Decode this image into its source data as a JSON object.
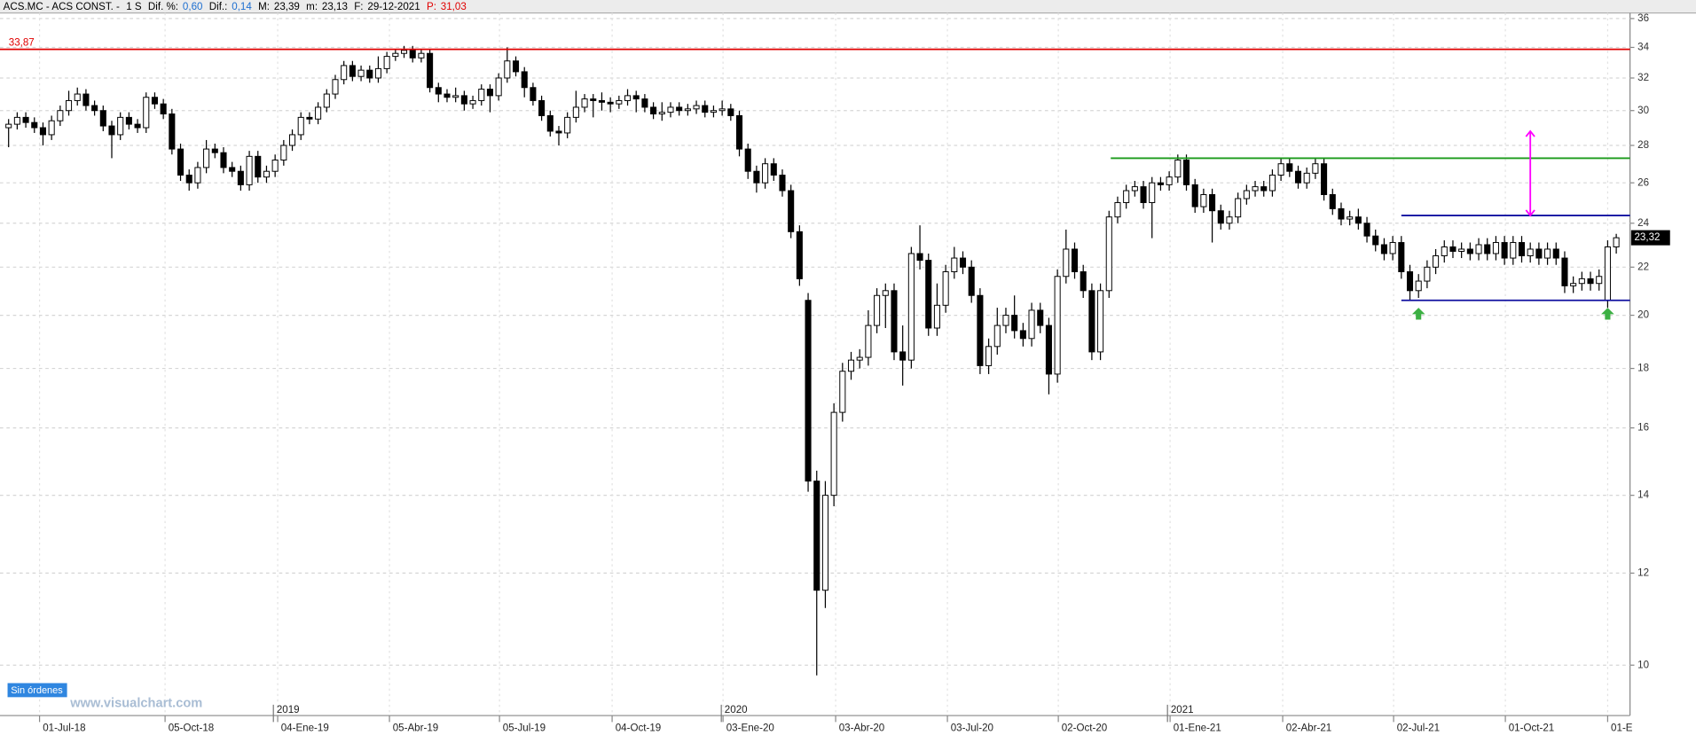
{
  "header": {
    "title": "ACS.MC - ACS CONST. -",
    "period": "1 S",
    "fields": [
      {
        "label": "Dif. %:",
        "value": "0,60",
        "color": "#1e6fd0"
      },
      {
        "label": "Dif.:",
        "value": "0,14",
        "color": "#1e6fd0"
      },
      {
        "label": "M:",
        "value": "23,39"
      },
      {
        "label": "m:",
        "value": "23,13"
      },
      {
        "label": "F:",
        "value": "29-12-2021"
      },
      {
        "label": "P:",
        "value": "31,03",
        "color": "#e00000",
        "label_color": "#e00000"
      }
    ]
  },
  "badge": "Sin órdenes",
  "watermark": "www.visualchart.com",
  "chart_data": {
    "type": "candlestick",
    "log_scale": true,
    "grid": true,
    "up_color": "#ffffff",
    "down_color": "#000000",
    "xlim": [
      -1,
      188.6
    ],
    "ylim": [
      9.05,
      36.4
    ],
    "yticks": [
      10,
      12,
      14,
      16,
      18,
      20,
      22,
      24,
      26,
      28,
      30,
      32,
      34,
      36
    ],
    "xticks": [
      {
        "value": 3.6,
        "label": "01-Jul-18"
      },
      {
        "value": 18.2,
        "label": "05-Oct-18"
      },
      {
        "value": 31.3,
        "label": "04-Ene-19"
      },
      {
        "value": 44.3,
        "label": "05-Abr-19"
      },
      {
        "value": 57.1,
        "label": "05-Jul-19"
      },
      {
        "value": 70.2,
        "label": "04-Oct-19"
      },
      {
        "value": 83.1,
        "label": "03-Ene-20"
      },
      {
        "value": 96.2,
        "label": "03-Abr-20"
      },
      {
        "value": 109.2,
        "label": "03-Jul-20"
      },
      {
        "value": 122.1,
        "label": "02-Oct-20"
      },
      {
        "value": 135.1,
        "label": "01-Ene-21"
      },
      {
        "value": 148.2,
        "label": "02-Abr-21"
      },
      {
        "value": 161.1,
        "label": "02-Jul-21"
      },
      {
        "value": 174.1,
        "label": "01-Oct-21"
      },
      {
        "value": 186.0,
        "label": "01-E"
      }
    ],
    "year_ticks": [
      {
        "value": 30.8,
        "label": "2019"
      },
      {
        "value": 82.9,
        "label": "2020"
      },
      {
        "value": 134.8,
        "label": "2021"
      }
    ],
    "open": [
      29.0,
      29.2,
      29.6,
      29.3,
      29.0,
      28.6,
      29.4,
      30.0,
      30.6,
      31.0,
      30.3,
      30.0,
      29.1,
      28.6,
      29.6,
      29.2,
      29.0,
      30.8,
      30.4,
      29.8,
      27.8,
      26.4,
      26.0,
      26.8,
      27.8,
      27.6,
      26.8,
      26.6,
      25.9,
      27.4,
      26.3,
      26.6,
      27.2,
      28.0,
      28.6,
      29.6,
      29.5,
      30.2,
      31.0,
      31.9,
      32.8,
      32.1,
      32.5,
      32.0,
      32.6,
      33.4,
      33.6,
      33.8,
      33.3,
      33.6,
      31.4,
      31.0,
      30.8,
      30.9,
      30.4,
      30.6,
      31.3,
      30.9,
      32.0,
      33.1,
      32.4,
      31.4,
      30.6,
      29.7,
      28.8,
      28.7,
      29.6,
      30.2,
      30.7,
      30.6,
      30.5,
      30.4,
      30.6,
      30.9,
      30.7,
      30.2,
      29.8,
      29.9,
      30.2,
      30.0,
      30.1,
      30.3,
      29.9,
      30.0,
      30.1,
      29.7,
      27.8,
      26.6,
      26.0,
      27.0,
      26.4,
      25.6,
      23.6,
      20.6,
      14.4,
      11.6,
      14.0,
      16.5,
      17.9,
      18.3,
      18.4,
      19.6,
      20.8,
      21.0,
      18.6,
      18.3,
      22.6,
      22.3,
      19.5,
      20.4,
      21.8,
      22.4,
      22.0,
      20.8,
      18.1,
      18.8,
      19.6,
      20.0,
      19.4,
      19.1,
      20.2,
      19.6,
      17.8,
      21.6,
      22.8,
      21.8,
      21.0,
      18.6,
      21.0,
      24.3,
      25.0,
      25.6,
      25.8,
      25.0,
      26.0,
      25.9,
      26.3,
      27.2,
      25.9,
      24.8,
      25.4,
      24.6,
      24.0,
      24.3,
      25.2,
      25.6,
      25.8,
      25.6,
      26.4,
      27.0,
      26.6,
      26.0,
      26.5,
      27.0,
      25.4,
      24.7,
      24.2,
      24.3,
      24.0,
      23.4,
      23.0,
      22.6,
      23.1,
      21.8,
      21.0,
      21.4,
      22.0,
      22.5,
      22.9,
      22.7,
      22.8,
      22.6,
      23.0,
      22.6,
      23.1,
      22.4,
      23.1,
      22.5,
      22.8,
      22.4,
      22.8,
      22.4,
      21.2,
      21.3,
      21.5,
      21.3,
      20.6,
      22.9
    ],
    "high": [
      29.5,
      29.9,
      29.9,
      29.6,
      29.3,
      29.7,
      30.3,
      31.2,
      31.4,
      31.3,
      30.6,
      30.3,
      29.4,
      29.9,
      29.9,
      29.5,
      31.1,
      31.1,
      30.7,
      30.1,
      28.1,
      26.7,
      27.1,
      28.3,
      28.1,
      27.9,
      27.1,
      26.9,
      27.7,
      27.7,
      26.9,
      27.5,
      28.3,
      28.9,
      29.9,
      29.9,
      30.5,
      31.3,
      32.2,
      33.1,
      33.1,
      32.8,
      32.8,
      33.4,
      33.7,
      33.9,
      34.1,
      34.1,
      33.9,
      33.9,
      31.7,
      31.3,
      31.4,
      31.2,
      30.9,
      31.6,
      31.6,
      32.3,
      34.0,
      33.4,
      32.7,
      31.7,
      30.9,
      30.0,
      29.1,
      29.9,
      31.2,
      31.0,
      31.0,
      31.1,
      30.8,
      30.9,
      31.3,
      31.2,
      31.0,
      30.5,
      30.5,
      30.5,
      30.5,
      30.4,
      30.6,
      30.6,
      30.3,
      30.6,
      30.4,
      30.0,
      28.1,
      26.9,
      27.3,
      27.3,
      26.7,
      25.9,
      23.9,
      20.9,
      14.7,
      14.4,
      16.8,
      18.2,
      18.6,
      18.7,
      20.2,
      21.1,
      21.3,
      21.3,
      19.6,
      22.9,
      23.9,
      22.6,
      21.3,
      22.1,
      22.9,
      22.7,
      22.3,
      21.1,
      19.1,
      20.3,
      20.3,
      20.8,
      19.7,
      20.5,
      20.5,
      19.9,
      21.9,
      23.7,
      23.1,
      22.1,
      21.3,
      21.3,
      24.6,
      25.3,
      25.9,
      26.1,
      26.1,
      26.3,
      26.3,
      26.6,
      27.5,
      27.5,
      26.2,
      25.7,
      25.7,
      24.9,
      24.6,
      25.5,
      25.9,
      26.1,
      26.1,
      26.7,
      27.3,
      27.3,
      26.9,
      26.8,
      27.3,
      27.3,
      25.7,
      25.0,
      24.6,
      24.7,
      24.3,
      23.7,
      23.3,
      23.4,
      23.4,
      22.1,
      21.7,
      22.3,
      22.8,
      23.2,
      23.2,
      23.1,
      23.1,
      23.3,
      23.3,
      23.4,
      23.4,
      23.4,
      23.4,
      23.1,
      23.1,
      23.1,
      23.1,
      22.7,
      21.6,
      21.8,
      21.8,
      21.9,
      23.2,
      23.5
    ],
    "low": [
      27.9,
      28.9,
      29.0,
      28.7,
      28.0,
      28.3,
      29.1,
      29.7,
      30.3,
      30.0,
      29.7,
      28.8,
      27.3,
      28.3,
      28.9,
      28.7,
      28.7,
      30.1,
      29.5,
      27.5,
      26.1,
      25.6,
      25.7,
      26.5,
      27.3,
      26.5,
      26.3,
      25.6,
      25.6,
      26.0,
      26.0,
      26.3,
      26.9,
      27.7,
      28.3,
      29.2,
      29.2,
      29.9,
      30.7,
      31.6,
      31.8,
      31.8,
      31.7,
      31.7,
      32.3,
      33.1,
      33.3,
      33.0,
      33.0,
      31.1,
      30.5,
      30.5,
      30.5,
      30.0,
      30.1,
      30.3,
      29.9,
      30.6,
      31.7,
      32.1,
      30.8,
      30.3,
      29.4,
      28.5,
      28.0,
      28.4,
      29.3,
      29.9,
      29.6,
      30.0,
      29.9,
      30.1,
      30.3,
      29.9,
      29.9,
      29.5,
      29.4,
      29.6,
      29.7,
      29.7,
      29.8,
      29.6,
      29.6,
      29.7,
      29.4,
      27.4,
      26.2,
      25.5,
      25.7,
      26.1,
      25.3,
      23.3,
      21.2,
      14.1,
      9.8,
      11.2,
      13.7,
      16.2,
      17.6,
      18.0,
      18.1,
      19.3,
      19.5,
      18.3,
      17.4,
      18.0,
      21.9,
      19.2,
      19.2,
      20.1,
      21.5,
      21.7,
      20.5,
      17.8,
      17.8,
      18.5,
      19.3,
      19.1,
      18.8,
      18.8,
      19.3,
      17.1,
      17.5,
      21.3,
      21.5,
      20.7,
      18.3,
      18.3,
      20.7,
      24.0,
      24.7,
      25.3,
      24.7,
      23.3,
      25.6,
      25.6,
      26.0,
      25.6,
      24.5,
      24.5,
      23.1,
      23.7,
      23.7,
      24.0,
      24.9,
      25.3,
      25.3,
      25.3,
      26.1,
      26.3,
      25.7,
      25.7,
      26.2,
      25.1,
      24.4,
      23.9,
      23.9,
      23.7,
      23.1,
      22.7,
      22.3,
      22.3,
      21.5,
      20.6,
      20.7,
      21.1,
      21.7,
      22.2,
      22.4,
      22.4,
      22.3,
      22.3,
      22.3,
      22.3,
      22.1,
      22.1,
      22.2,
      22.2,
      22.1,
      22.1,
      22.1,
      20.9,
      20.9,
      21.0,
      21.0,
      21.0,
      20.3,
      22.6
    ],
    "close": [
      29.2,
      29.6,
      29.3,
      29.0,
      28.6,
      29.4,
      30.0,
      30.6,
      31.0,
      30.3,
      30.0,
      29.1,
      28.6,
      29.6,
      29.2,
      29.0,
      30.8,
      30.4,
      29.8,
      27.8,
      26.4,
      26.0,
      26.8,
      27.8,
      27.6,
      26.8,
      26.6,
      25.9,
      27.4,
      26.3,
      26.6,
      27.2,
      28.0,
      28.6,
      29.6,
      29.5,
      30.2,
      31.0,
      31.9,
      32.8,
      32.1,
      32.5,
      32.0,
      32.6,
      33.4,
      33.6,
      33.8,
      33.3,
      33.6,
      31.4,
      31.0,
      30.8,
      30.9,
      30.4,
      30.6,
      31.3,
      30.9,
      32.0,
      33.1,
      32.4,
      31.4,
      30.6,
      29.7,
      28.8,
      28.7,
      29.6,
      30.2,
      30.7,
      30.6,
      30.5,
      30.4,
      30.6,
      30.9,
      30.7,
      30.2,
      29.8,
      29.9,
      30.2,
      30.0,
      30.1,
      30.3,
      29.9,
      30.0,
      30.1,
      29.7,
      27.8,
      26.6,
      26.0,
      27.0,
      26.4,
      25.6,
      23.6,
      21.5,
      14.4,
      11.6,
      14.0,
      16.5,
      17.9,
      18.3,
      18.4,
      19.6,
      20.8,
      21.0,
      18.6,
      18.3,
      22.6,
      22.3,
      19.5,
      20.4,
      21.8,
      22.4,
      22.0,
      20.8,
      18.1,
      18.8,
      19.6,
      20.0,
      19.4,
      19.1,
      20.2,
      19.6,
      17.8,
      21.6,
      22.8,
      21.8,
      21.0,
      18.6,
      21.0,
      24.3,
      25.0,
      25.6,
      25.8,
      25.0,
      26.0,
      25.9,
      26.3,
      27.2,
      25.9,
      24.8,
      25.4,
      24.6,
      24.0,
      24.3,
      25.2,
      25.6,
      25.8,
      25.6,
      26.4,
      27.0,
      26.6,
      26.0,
      26.5,
      27.0,
      25.4,
      24.7,
      24.2,
      24.3,
      24.0,
      23.4,
      23.0,
      22.6,
      23.1,
      21.8,
      21.0,
      21.4,
      22.0,
      22.5,
      22.9,
      22.7,
      22.8,
      22.6,
      23.0,
      22.6,
      23.1,
      22.4,
      23.1,
      22.5,
      22.8,
      22.4,
      22.8,
      22.4,
      21.2,
      21.3,
      21.5,
      21.3,
      21.6,
      22.9,
      23.32
    ],
    "hlines": [
      {
        "value": 33.87,
        "label": "33,87",
        "color": "#e00000"
      },
      {
        "value": 27.3,
        "color": "#1a9a1a",
        "x": [
          128.2,
          188.6
        ]
      },
      {
        "value": 24.37,
        "color": "#1010a0",
        "x": [
          162.0,
          188.6
        ]
      },
      {
        "value": 20.6,
        "color": "#1010a0",
        "x": [
          162.0,
          188.6
        ]
      }
    ],
    "arrows": [
      {
        "x": 177.0,
        "from": 24.37,
        "to": 28.8,
        "color": "#ff00ff"
      }
    ],
    "markers": [
      {
        "x": 164.0,
        "y": 20.3,
        "color": "#3cb043"
      },
      {
        "x": 186.0,
        "y": 20.3,
        "color": "#3cb043"
      }
    ],
    "last_price": {
      "value": 23.32,
      "label": "23,32"
    }
  }
}
